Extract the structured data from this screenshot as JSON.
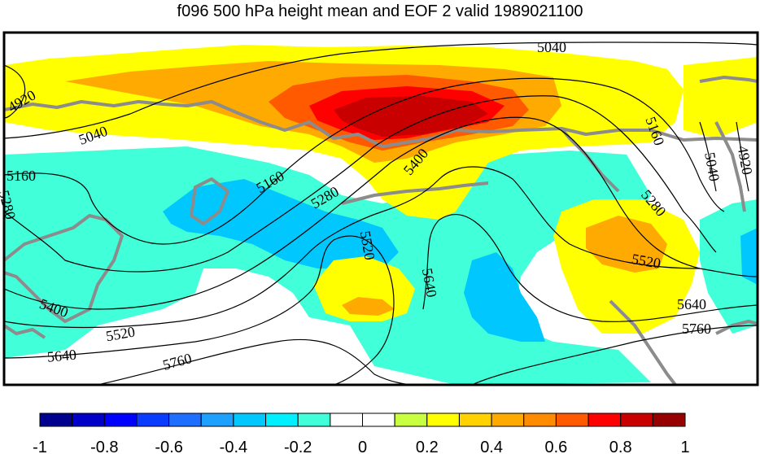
{
  "title": "f096 500 hPa height mean and EOF 2 valid 1989021100",
  "colorbar": {
    "colors": [
      "#00008f",
      "#0000c8",
      "#0000ff",
      "#0a3cff",
      "#1e6eff",
      "#1ea0ff",
      "#00c8ff",
      "#00f0ff",
      "#40ffd9",
      "#ffffff",
      "#ffffff",
      "#c8ff40",
      "#ffff00",
      "#ffd200",
      "#ffaa00",
      "#ff8c00",
      "#ff5a00",
      "#ff0000",
      "#c80000",
      "#960000"
    ],
    "ticks": [
      "-1",
      "-0.8",
      "-0.6",
      "-0.4",
      "-0.2",
      "0",
      "0.2",
      "0.4",
      "0.6",
      "0.8",
      "1"
    ]
  },
  "contour_labels": [
    "4920",
    "5040",
    "5040",
    "5160",
    "5160",
    "5280",
    "5280",
    "5400",
    "5400",
    "5520",
    "5520",
    "5520",
    "5640",
    "5640",
    "5640",
    "5760",
    "5760",
    "5160",
    "5280",
    "5040",
    "4920"
  ],
  "colors": {
    "coastline": "#8c8c8c",
    "contour": "#000000"
  }
}
